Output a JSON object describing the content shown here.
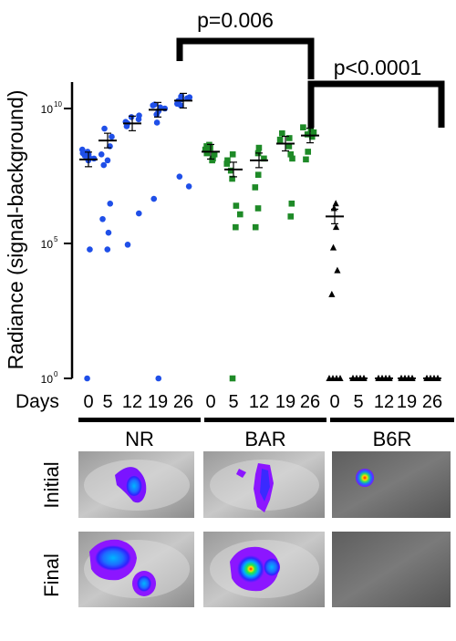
{
  "chart_data": {
    "type": "scatter",
    "title": "",
    "ylabel": "Radiance (signal-background)",
    "xlabel": "Days",
    "yscale": "log",
    "ylim": [
      1,
      100000000000
    ],
    "yticks": [
      {
        "value": 1,
        "label": "10",
        "exp": "0"
      },
      {
        "value": 100000,
        "label": "10",
        "exp": "5"
      },
      {
        "value": 10000000000,
        "label": "10",
        "exp": "10"
      }
    ],
    "groups": [
      {
        "name": "NR",
        "color": "#1f4fe8",
        "marker": "circle",
        "days": [
          "0",
          "5",
          "12",
          "19",
          "26"
        ],
        "points": [
          [
            120000000.0,
            150000000.0,
            220000000.0,
            180000000.0,
            250000000.0,
            200000000.0,
            300000000.0,
            140000000.0,
            60000.0,
            1
          ],
          [
            1800000000.0,
            900000000.0,
            400000000.0,
            200000000.0,
            120000000.0,
            80000000.0,
            3000000.0,
            800000.0,
            250000.0,
            60000.0
          ],
          [
            2800000000.0,
            3200000000.0,
            4000000000.0,
            5500000000.0,
            2200000000.0,
            4800000000.0,
            1300000.0,
            90000.0
          ],
          [
            6000000000.0,
            8000000000.0,
            11000000000.0,
            14000000000.0,
            13000000000.0,
            10000000000.0,
            3000000000.0,
            4500000.0,
            1
          ],
          [
            13000000000.0,
            19000000000.0,
            24000000000.0,
            22000000000.0,
            28000000000.0,
            15000000000.0,
            26000000000.0,
            30000000.0,
            13000000.0
          ]
        ],
        "means": [
          130000000.0,
          650000000.0,
          2800000000.0,
          9000000000.0,
          19500000000.0
        ]
      },
      {
        "name": "BAR",
        "color": "#1e8a27",
        "marker": "square",
        "days": [
          "0",
          "5",
          "12",
          "19",
          "26"
        ],
        "points": [
          [
            350000000.0,
            220000000.0,
            120000000.0,
            450000000.0,
            200000000.0,
            140000000.0,
            300000000.0,
            400000000.0
          ],
          [
            200000000.0,
            120000000.0,
            90000000.0,
            25000000.0,
            2500000.0,
            400000.0,
            1200000.0,
            50000000.0,
            1
          ],
          [
            350000000.0,
            220000000.0,
            140000000.0,
            35000000.0,
            2000000.0,
            400000.0,
            12000000.0
          ],
          [
            400000000.0,
            700000000.0,
            1200000000.0,
            800000000.0,
            200000000.0,
            140000000.0,
            3000000.0,
            1000000.0
          ],
          [
            1300000000.0,
            900000000.0,
            1700000000.0,
            2000000000.0,
            1100000000.0,
            250000000.0,
            130000000.0
          ]
        ],
        "means": [
          250000000.0,
          55000000.0,
          120000000.0,
          500000000.0,
          1000000000.0
        ]
      },
      {
        "name": "B6R",
        "color": "#000000",
        "marker": "triangle",
        "days": [
          "0",
          "5",
          "12",
          "19",
          "26"
        ],
        "points": [
          [
            2000000.0,
            3000000.0,
            400000.0,
            70000.0,
            10000.0,
            1300.0,
            1,
            1,
            1,
            1
          ],
          [
            1,
            1,
            1,
            1,
            1,
            1,
            1,
            1
          ],
          [
            1,
            1,
            1,
            1,
            1,
            1,
            1,
            1
          ],
          [
            1,
            1,
            1,
            1,
            1,
            1,
            1,
            1
          ],
          [
            1,
            1,
            1,
            1,
            1,
            1,
            1,
            1
          ]
        ],
        "means": [
          1000000.0,
          1,
          1,
          1,
          1
        ]
      }
    ],
    "annotations": [
      {
        "text": "p=0.006",
        "from": "NR 26",
        "to": "BAR 26"
      },
      {
        "text": "p<0.0001",
        "from": "BAR 26",
        "to": "B6R 26"
      }
    ]
  },
  "images": {
    "rows": [
      "Initial",
      "Final"
    ],
    "columns": [
      "NR",
      "BAR",
      "B6R"
    ]
  }
}
